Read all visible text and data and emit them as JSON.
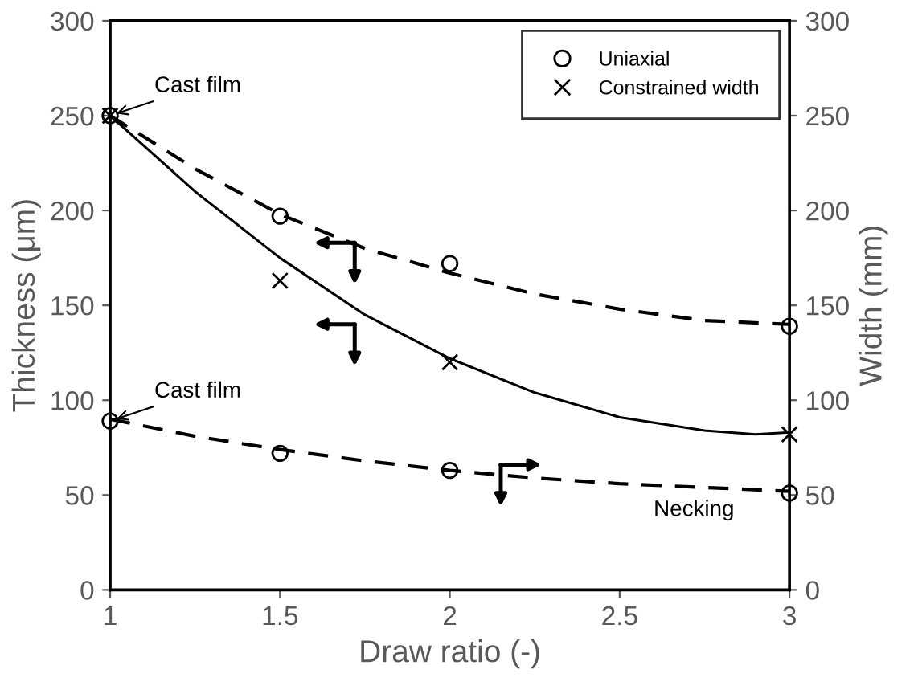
{
  "chart_data": {
    "type": "scatter",
    "xlabel": "Draw ratio (-)",
    "ylabel": "Thickness (μm)",
    "y2label": "Width (mm)",
    "xlim": [
      1,
      3
    ],
    "xticks": [
      1,
      1.5,
      2,
      2.5,
      3
    ],
    "ylim": [
      0,
      300
    ],
    "yticks": [
      0,
      50,
      100,
      150,
      200,
      250,
      300
    ],
    "y2lim": [
      0,
      300
    ],
    "y2ticks": [
      0,
      50,
      100,
      150,
      200,
      250,
      300
    ],
    "grid": false,
    "legend": "top right",
    "series": [
      {
        "name": "Uniaxial",
        "marker": "circle",
        "color": "#000000",
        "x": [
          1,
          1.5,
          2,
          3
        ],
        "values": [
          250,
          197,
          172,
          139
        ]
      },
      {
        "name": "Constrained width",
        "marker": "cross",
        "color": "#000000",
        "x": [
          1,
          1.5,
          2,
          3
        ],
        "values": [
          250,
          163,
          120,
          82
        ]
      },
      {
        "marker": "circle",
        "color": "#000000",
        "axis": "y2",
        "x": [
          1,
          1.5,
          2,
          3
        ],
        "values": [
          89,
          72,
          63,
          51
        ]
      },
      {
        "type": "line",
        "line_style": "dashed",
        "color": "#000000",
        "x": [
          1,
          1.25,
          1.5,
          1.75,
          2,
          2.25,
          2.5,
          2.75,
          3
        ],
        "values": [
          250,
          222,
          198,
          180,
          167,
          156,
          148,
          142,
          140
        ]
      },
      {
        "type": "line",
        "line_style": "solid",
        "color": "#000000",
        "x": [
          1,
          1.25,
          1.5,
          1.75,
          2,
          2.25,
          2.5,
          2.75,
          2.9,
          3
        ],
        "values": [
          250,
          210,
          175,
          145,
          122,
          104,
          91,
          84,
          82,
          83
        ]
      },
      {
        "type": "line",
        "line_style": "dashed",
        "color": "#000000",
        "axis": "y2",
        "x": [
          1,
          1.25,
          1.5,
          1.75,
          2,
          2.25,
          2.5,
          2.75,
          3
        ],
        "values": [
          90,
          81,
          74,
          68,
          63,
          59,
          56,
          54,
          52
        ]
      }
    ],
    "annotations": [
      {
        "text": "Cast film",
        "x": 1,
        "y": 250
      },
      {
        "text": "Cast film",
        "x": 1,
        "y": 89
      },
      "Necking"
    ]
  }
}
